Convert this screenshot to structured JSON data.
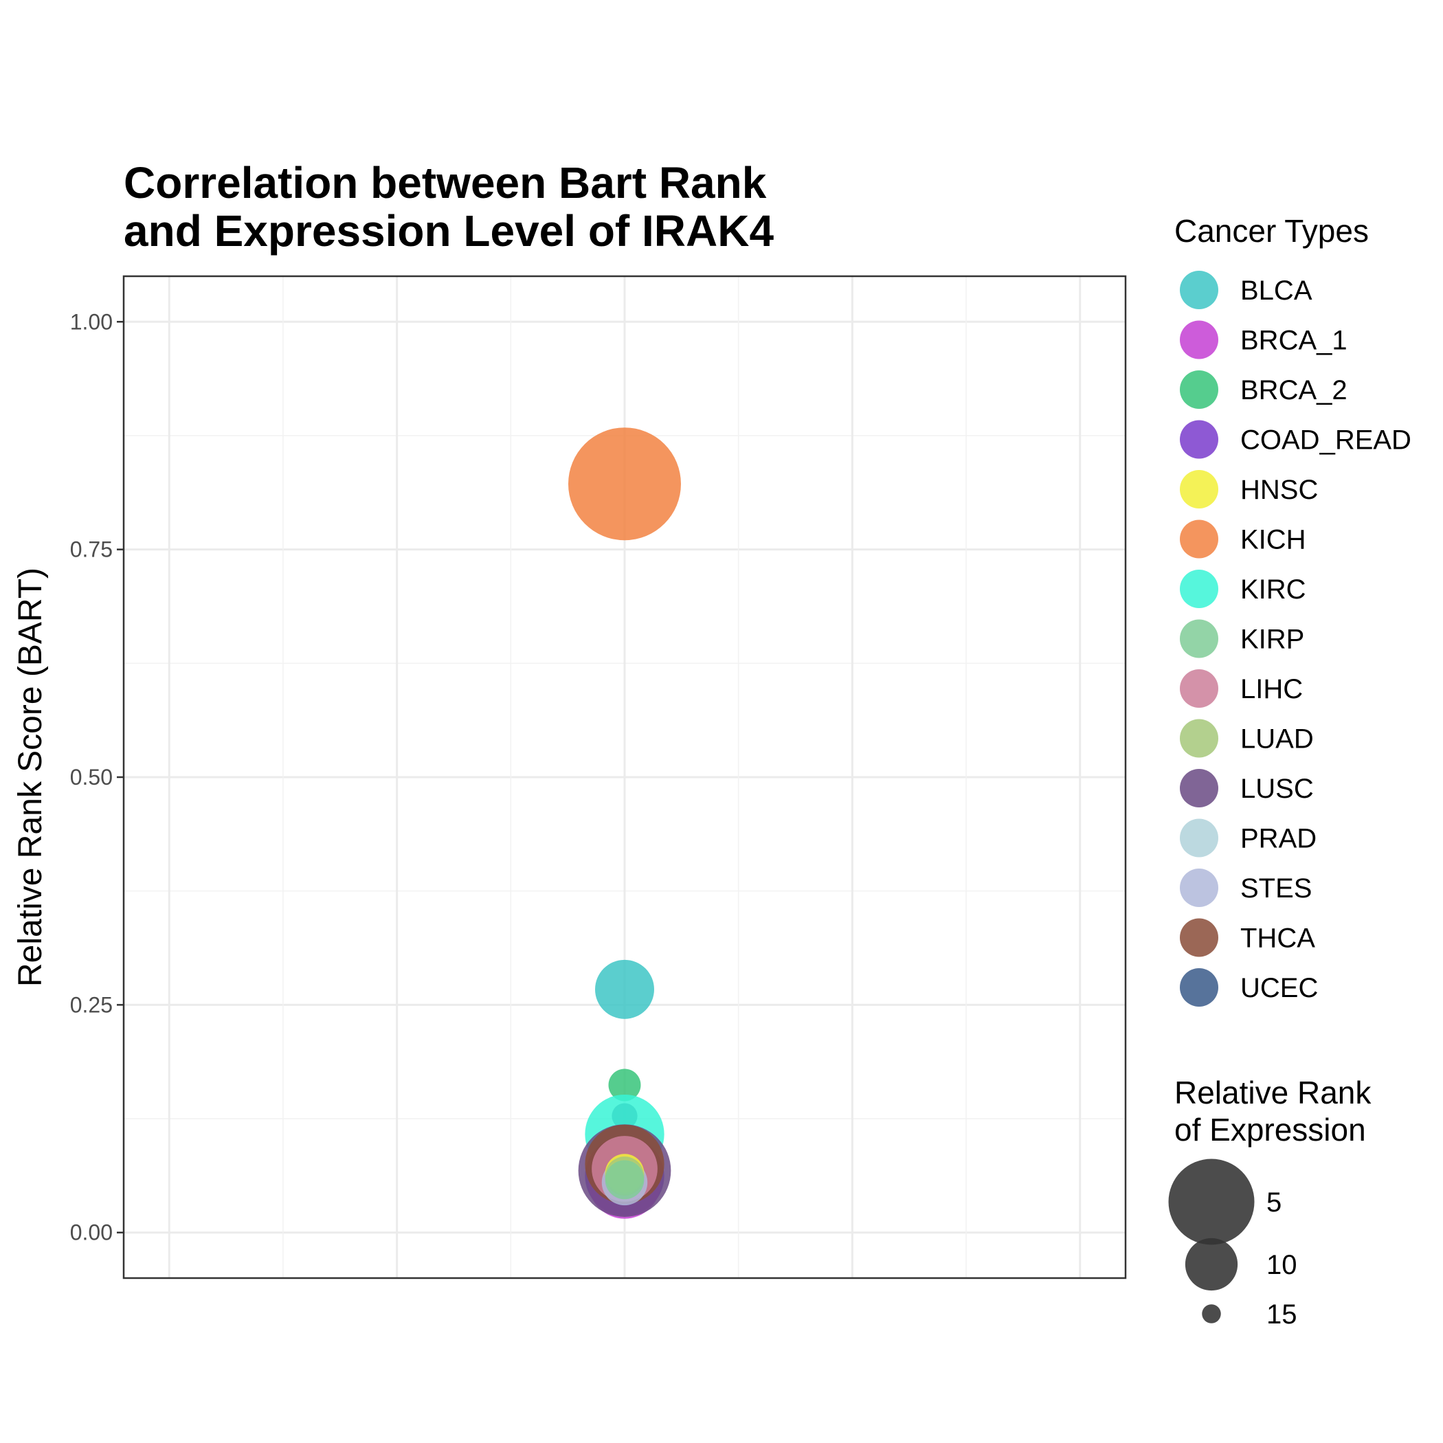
{
  "chart_data": {
    "type": "scatter",
    "title_lines": [
      "Correlation between Bart Rank",
      "and Expression Level of IRAK4"
    ],
    "ylabel": "Relative Rank Score (BART)",
    "xlabel": "",
    "ylim": [
      -0.05,
      1.05
    ],
    "y_ticks": [
      {
        "value": 0,
        "label": "0.00"
      },
      {
        "value": 0.25,
        "label": "0.25"
      },
      {
        "value": 0.5,
        "label": "0.50"
      },
      {
        "value": 0.75,
        "label": "0.75"
      },
      {
        "value": 1,
        "label": "1.00"
      }
    ],
    "grid": true,
    "legend_placement": "right",
    "color_legend": {
      "title": "Cancer Types",
      "items": [
        {
          "name": "BLCA",
          "color": "#3ec6c6"
        },
        {
          "name": "BRCA_1",
          "color": "#c43fd3"
        },
        {
          "name": "BRCA_2",
          "color": "#37c47a"
        },
        {
          "name": "COAD_READ",
          "color": "#7a3ccc"
        },
        {
          "name": "HNSC",
          "color": "#f2f03a"
        },
        {
          "name": "KICH",
          "color": "#f28342"
        },
        {
          "name": "KIRC",
          "color": "#38f5d6"
        },
        {
          "name": "KIRP",
          "color": "#80cc98"
        },
        {
          "name": "LIHC",
          "color": "#cc7f9a"
        },
        {
          "name": "LUAD",
          "color": "#a6c87a"
        },
        {
          "name": "LUSC",
          "color": "#6a4a84"
        },
        {
          "name": "PRAD",
          "color": "#b0d2da"
        },
        {
          "name": "STES",
          "color": "#b0b8da"
        },
        {
          "name": "THCA",
          "color": "#8a4c38"
        },
        {
          "name": "UCEC",
          "color": "#3a5a8a"
        }
      ]
    },
    "size_legend": {
      "title_lines": [
        "Relative Rank",
        "of Expression"
      ],
      "items": [
        {
          "label": "5",
          "value": 5
        },
        {
          "label": "10",
          "value": 10
        },
        {
          "label": "15",
          "value": 15
        }
      ]
    },
    "points": [
      {
        "series": "KICH",
        "y": 0.822,
        "size": 1
      },
      {
        "series": "BLCA",
        "y": 0.267,
        "size": 9
      },
      {
        "series": "BRCA_2",
        "y": 0.162,
        "size": 13
      },
      {
        "series": "UCEC",
        "y": 0.128,
        "size": 14
      },
      {
        "series": "KIRC",
        "y": 0.108,
        "size": 6
      },
      {
        "series": "COAD_READ",
        "y": 0.062,
        "size": 6
      },
      {
        "series": "BRCA_1",
        "y": 0.055,
        "size": 7
      },
      {
        "series": "LUSC",
        "y": 0.068,
        "size": 4
      },
      {
        "series": "THCA",
        "y": 0.075,
        "size": 6
      },
      {
        "series": "LIHC",
        "y": 0.07,
        "size": 8
      },
      {
        "series": "STES",
        "y": 0.055,
        "size": 11
      },
      {
        "series": "PRAD",
        "y": 0.06,
        "size": 13
      },
      {
        "series": "HNSC",
        "y": 0.065,
        "size": 12
      },
      {
        "series": "LUAD",
        "y": 0.062,
        "size": 12
      },
      {
        "series": "KIRP",
        "y": 0.058,
        "size": 12
      }
    ]
  }
}
